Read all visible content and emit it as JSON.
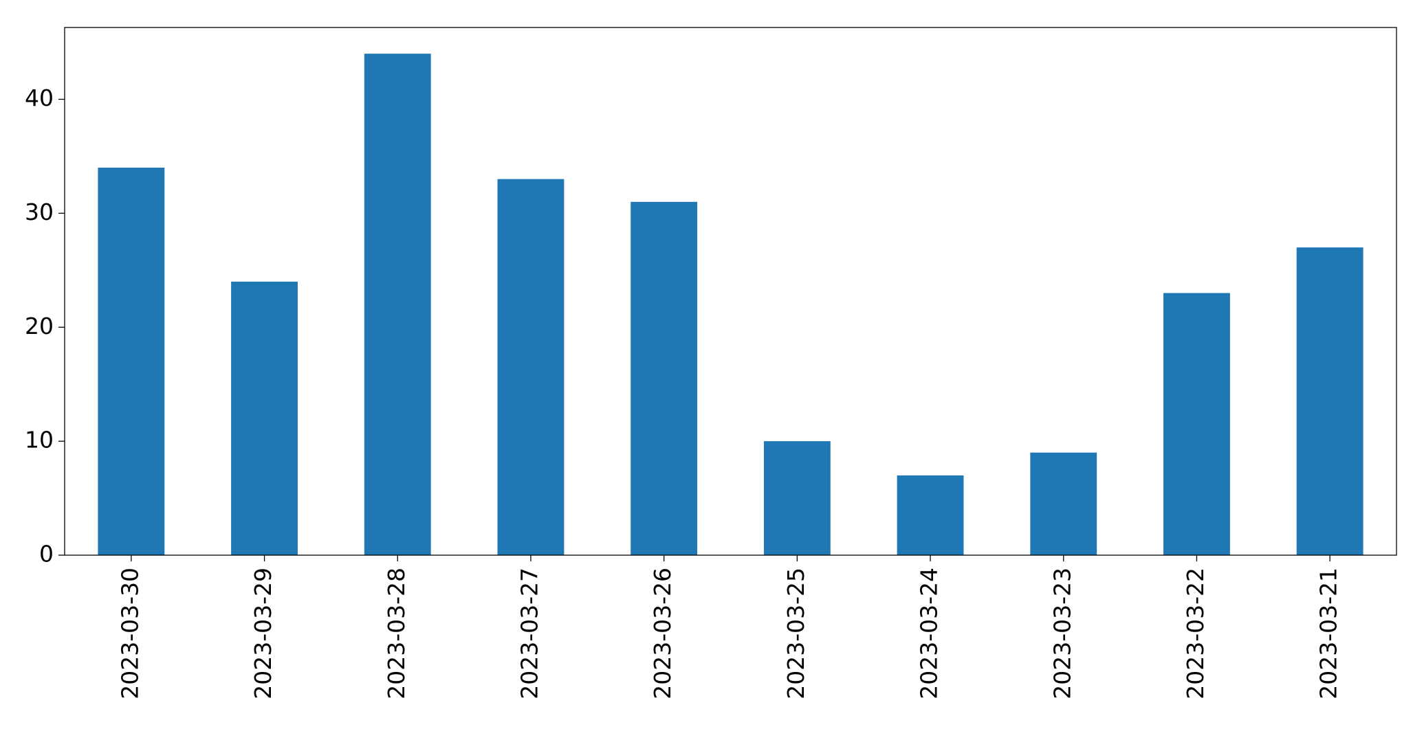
{
  "chart_data": {
    "type": "bar",
    "categories": [
      "2023-03-30",
      "2023-03-29",
      "2023-03-28",
      "2023-03-27",
      "2023-03-26",
      "2023-03-25",
      "2023-03-24",
      "2023-03-23",
      "2023-03-22",
      "2023-03-21"
    ],
    "values": [
      34,
      24,
      44,
      33,
      31,
      10,
      7,
      9,
      23,
      27
    ],
    "color": "#1f77b4",
    "ylim": [
      0,
      46.3
    ],
    "yticks": [
      0,
      10,
      20,
      30,
      40
    ],
    "grid": false
  }
}
